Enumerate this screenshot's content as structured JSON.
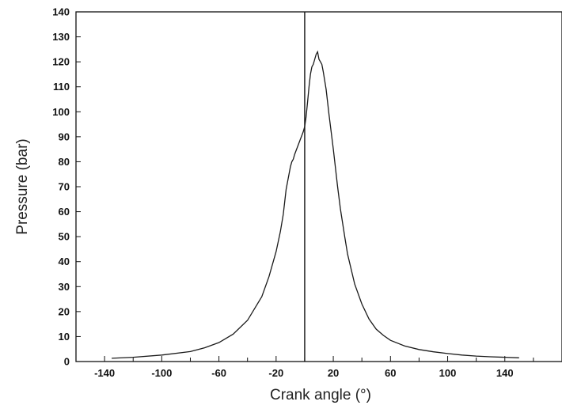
{
  "chart_data": {
    "type": "line",
    "title": "",
    "xlabel": "Crank angle (°)",
    "ylabel": "Pressure (bar)",
    "xlim": [
      -160,
      180
    ],
    "ylim": [
      0,
      140
    ],
    "x_ticks": [
      -140,
      -100,
      -60,
      -20,
      20,
      60,
      100,
      140
    ],
    "y_ticks": [
      0,
      10,
      20,
      30,
      40,
      50,
      60,
      70,
      80,
      90,
      100,
      110,
      120,
      130,
      140
    ],
    "x_tick_labels": [
      "-140",
      "-100",
      "-60",
      "-20",
      "20",
      "60",
      "100",
      "140"
    ],
    "y_tick_labels": [
      "0",
      "10",
      "20",
      "30",
      "40",
      "50",
      "60",
      "70",
      "80",
      "90",
      "100",
      "110",
      "120",
      "130",
      "140"
    ],
    "grid": false,
    "legend": "none",
    "reference_line_x": 0,
    "series": [
      {
        "color": "#1a1a1a",
        "points": [
          [
            -135,
            1.3
          ],
          [
            -120,
            1.7
          ],
          [
            -100,
            2.6
          ],
          [
            -80,
            4
          ],
          [
            -70,
            5.5
          ],
          [
            -60,
            7.6
          ],
          [
            -50,
            11
          ],
          [
            -40,
            16.5
          ],
          [
            -30,
            26
          ],
          [
            -25,
            34
          ],
          [
            -20,
            44
          ],
          [
            -17,
            52
          ],
          [
            -15,
            59
          ],
          [
            -13,
            69
          ],
          [
            -11,
            75
          ],
          [
            -10,
            78
          ],
          [
            -9,
            80
          ],
          [
            -8,
            81
          ],
          [
            -7,
            83
          ],
          [
            -5,
            86
          ],
          [
            -3,
            89
          ],
          [
            -1,
            92
          ],
          [
            0,
            94
          ],
          [
            1,
            98
          ],
          [
            2,
            104
          ],
          [
            3,
            110
          ],
          [
            4,
            115
          ],
          [
            5,
            118
          ],
          [
            6,
            119
          ],
          [
            7,
            121
          ],
          [
            8,
            123
          ],
          [
            9,
            124
          ],
          [
            10,
            121
          ],
          [
            11,
            120
          ],
          [
            12,
            119
          ],
          [
            13,
            116
          ],
          [
            15,
            109
          ],
          [
            17,
            99
          ],
          [
            20,
            85
          ],
          [
            23,
            70
          ],
          [
            25,
            61
          ],
          [
            28,
            50
          ],
          [
            30,
            43
          ],
          [
            35,
            31
          ],
          [
            40,
            23
          ],
          [
            45,
            17
          ],
          [
            50,
            13
          ],
          [
            55,
            10.5
          ],
          [
            60,
            8.5
          ],
          [
            70,
            6.2
          ],
          [
            80,
            4.8
          ],
          [
            90,
            3.9
          ],
          [
            100,
            3.2
          ],
          [
            110,
            2.6
          ],
          [
            120,
            2.2
          ],
          [
            130,
            1.9
          ],
          [
            140,
            1.7
          ],
          [
            150,
            1.5
          ]
        ]
      }
    ]
  }
}
